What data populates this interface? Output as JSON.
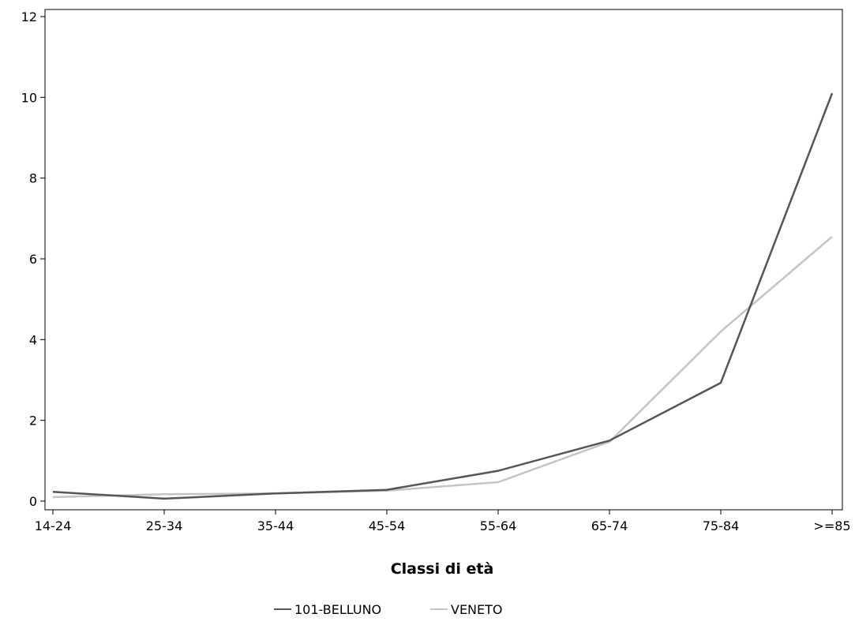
{
  "chart_data": {
    "type": "line",
    "title": "",
    "xlabel": "Classi di età",
    "ylabel": "",
    "categories": [
      "14-24",
      "25-34",
      "35-44",
      "45-54",
      "55-64",
      "65-74",
      "75-84",
      ">=85"
    ],
    "ylim": [
      0,
      12
    ],
    "yticks": [
      0,
      2,
      4,
      6,
      8,
      10,
      12
    ],
    "grid": false,
    "legend_position": "bottom",
    "series": [
      {
        "name": "101-BELLUNO",
        "color": "#555555",
        "values": [
          0.23,
          0.06,
          0.19,
          0.28,
          0.75,
          1.5,
          2.93,
          10.1
        ]
      },
      {
        "name": "VENETO",
        "color": "#c4c4c4",
        "values": [
          0.1,
          0.17,
          0.19,
          0.26,
          0.47,
          1.47,
          4.2,
          6.55
        ]
      }
    ]
  }
}
